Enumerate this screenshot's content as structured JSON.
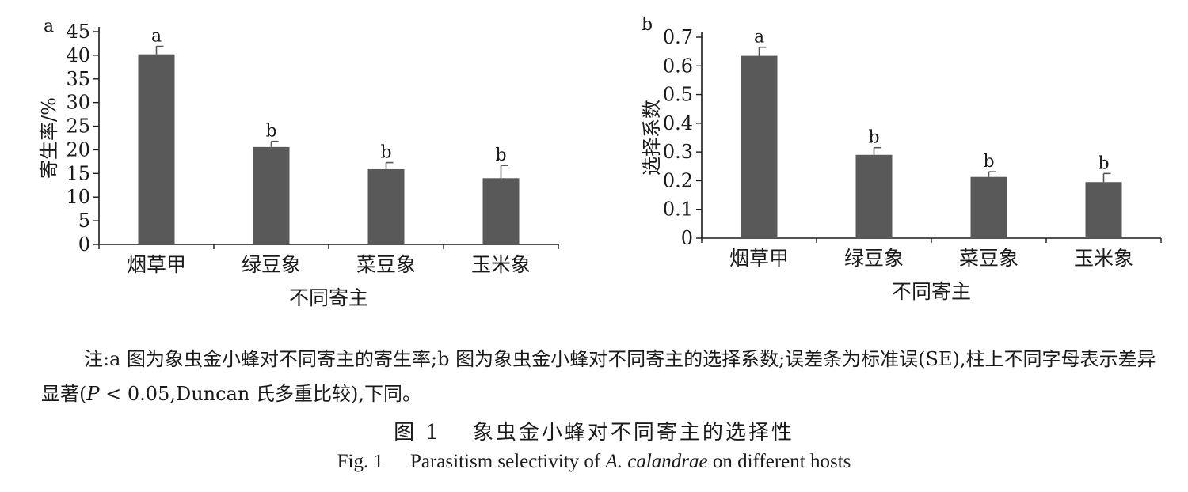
{
  "chart_data": [
    {
      "panel_label": "a",
      "type": "bar",
      "categories": [
        "烟草甲",
        "绿豆象",
        "菜豆象",
        "玉米象"
      ],
      "values": [
        40.2,
        20.6,
        15.9,
        14.0
      ],
      "errors": [
        1.7,
        1.2,
        1.4,
        2.7
      ],
      "letters": [
        "a",
        "b",
        "b",
        "b"
      ],
      "xlabel": "不同寄主",
      "ylabel": "寄生率/%",
      "ylim": [
        0,
        45
      ],
      "yticks": [
        "0",
        "5",
        "10",
        "15",
        "20",
        "25",
        "30",
        "35",
        "40",
        "45"
      ],
      "bar_color": "#595959",
      "grid": false
    },
    {
      "panel_label": "b",
      "type": "bar",
      "categories": [
        "烟草甲",
        "绿豆象",
        "菜豆象",
        "玉米象"
      ],
      "values": [
        0.635,
        0.29,
        0.213,
        0.195
      ],
      "errors": [
        0.03,
        0.025,
        0.018,
        0.03
      ],
      "letters": [
        "a",
        "b",
        "b",
        "b"
      ],
      "xlabel": "不同寄主",
      "ylabel": "选择系数",
      "ylim": [
        0,
        0.7
      ],
      "yticks": [
        "0",
        "0.1",
        "0.2",
        "0.3",
        "0.4",
        "0.5",
        "0.6",
        "0.7"
      ],
      "bar_color": "#595959",
      "grid": false
    }
  ],
  "note": {
    "prefix": "注:a 图为象虫金小蜂对不同寄主的寄生率;b 图为象虫金小蜂对不同寄主的选择系数;误差条为标准误(SE),柱上不同字母表示差异显著(",
    "p_symbol": "P",
    "p_value": " < 0.05",
    "suffix": ",Duncan 氏多重比较),下同。"
  },
  "caption_cn": {
    "number": "图 1",
    "text": "象虫金小蜂对不同寄主的选择性"
  },
  "caption_en": {
    "number": "Fig. 1",
    "text_before": "Parasitism selectivity of ",
    "species": "A. calandrae",
    "text_after": " on different hosts"
  }
}
